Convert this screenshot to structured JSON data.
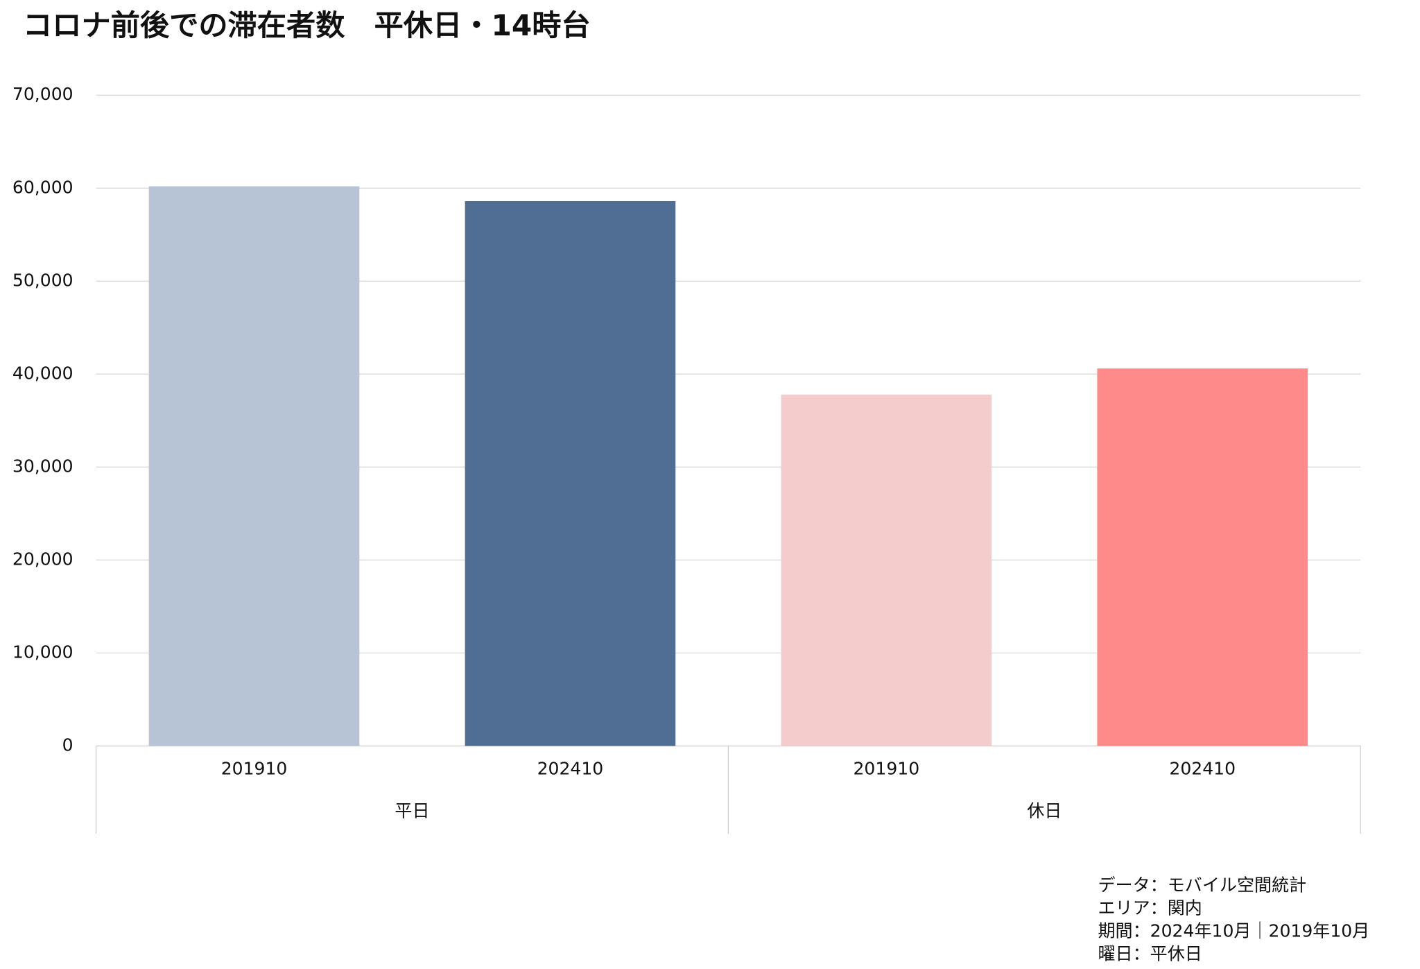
{
  "chart_data": {
    "type": "bar",
    "title": "コロナ前後での滞在者数　平休日・14時台",
    "categories": [
      "201910",
      "202410",
      "201910",
      "202410"
    ],
    "groups": [
      "平日",
      "休日"
    ],
    "values": [
      60200,
      58600,
      37800,
      40600
    ],
    "colors": [
      "#b6c4d6",
      "#506e93",
      "#f4cccc",
      "#ff8a8a"
    ],
    "ylim": [
      0,
      70000
    ],
    "yticks": [
      0,
      {
        "value": 10000,
        "label": "10,000"
      },
      {
        "value": 20000,
        "label": "20,000"
      },
      {
        "value": 30000,
        "label": "30,000"
      },
      {
        "value": 40000,
        "label": "40,000"
      },
      {
        "value": 50000,
        "label": "50,000"
      },
      {
        "value": 60000,
        "label": "60,000"
      },
      {
        "value": 70000,
        "label": "70,000"
      }
    ],
    "grid": true,
    "notes": [
      "データ：モバイル空間統計",
      "エリア：関内",
      "期間：2024年10月｜2019年10月",
      "曜日：平休日"
    ]
  }
}
